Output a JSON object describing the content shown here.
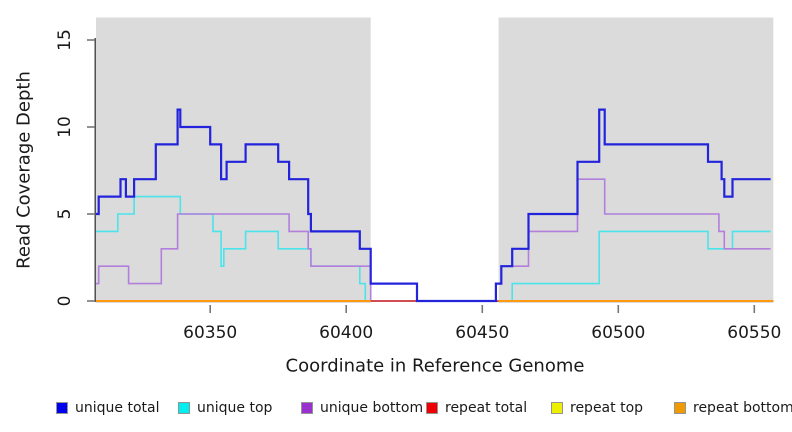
{
  "figure": {
    "xlabel": "Coordinate in Reference Genome",
    "ylabel": "Read Coverage Depth"
  },
  "chart_data": {
    "type": "line",
    "style": "step-coverage-plot",
    "title": "",
    "xlabel": "Coordinate in Reference Genome",
    "ylabel": "Read Coverage Depth",
    "grid": "off",
    "x_axis": {
      "min": 60308,
      "max": 60557,
      "ticks": [
        60350,
        60400,
        60450,
        60500,
        60550
      ]
    },
    "y_axis": {
      "min": 0,
      "max": 16,
      "ticks": [
        0,
        5,
        10,
        15
      ]
    },
    "background_regions": {
      "shaded_color": "#DBDBDB",
      "shaded": [
        [
          60308,
          60409
        ],
        [
          60456,
          60557
        ]
      ],
      "white_gap": [
        60409,
        60456
      ]
    },
    "series": [
      {
        "name": "repeat-top",
        "label": "repeat top",
        "color": "#EEEE00",
        "width": 1.6,
        "segments": [
          [
            [
              60308,
              0
            ],
            [
              60557,
              0
            ]
          ]
        ]
      },
      {
        "name": "unique-top",
        "label": "unique top",
        "color": "#4AE4EA",
        "width": 1.6,
        "segments": [
          [
            [
              60308,
              4
            ],
            [
              60316,
              5
            ],
            [
              60322,
              6
            ],
            [
              60339,
              5
            ],
            [
              60351,
              4
            ],
            [
              60354,
              2
            ],
            [
              60355,
              3
            ],
            [
              60363,
              4
            ],
            [
              60375,
              3
            ],
            [
              60387,
              2
            ],
            [
              60405,
              1
            ],
            [
              60407,
              0
            ],
            [
              60461,
              1
            ],
            [
              60493,
              4
            ],
            [
              60533,
              3
            ],
            [
              60542,
              4
            ],
            [
              60556,
              4
            ]
          ]
        ]
      },
      {
        "name": "unique-bottom",
        "label": "unique bottom",
        "color": "#B27FDC",
        "width": 1.6,
        "segments": [
          [
            [
              60308,
              1
            ],
            [
              60309,
              2
            ],
            [
              60320,
              1
            ],
            [
              60332,
              3
            ],
            [
              60338,
              5
            ],
            [
              60379,
              4
            ],
            [
              60386,
              3
            ],
            [
              60387,
              2
            ],
            [
              60409,
              0
            ],
            [
              60455,
              1
            ],
            [
              60457,
              2
            ],
            [
              60467,
              4
            ],
            [
              60485,
              7
            ],
            [
              60495,
              5
            ],
            [
              60537,
              4
            ],
            [
              60539,
              3
            ],
            [
              60556,
              3
            ]
          ]
        ]
      },
      {
        "name": "repeat-total",
        "label": "repeat total",
        "color": "#DC2A2A",
        "width": 1.6,
        "segments": [
          [
            [
              60308,
              0
            ],
            [
              60557,
              0
            ]
          ]
        ]
      },
      {
        "name": "repeat-bottom",
        "label": "repeat bottom",
        "color": "#FF9912",
        "width": 2,
        "segments": [
          [
            [
              60308,
              0
            ],
            [
              60409,
              0
            ]
          ],
          [
            [
              60456,
              0
            ],
            [
              60557,
              0
            ]
          ]
        ]
      },
      {
        "name": "unique-total",
        "label": "unique total",
        "color": "#2323DC",
        "width": 2.2,
        "segments": [
          [
            [
              60308,
              5
            ],
            [
              60309,
              6
            ],
            [
              60317,
              7
            ],
            [
              60319,
              6
            ],
            [
              60322,
              7
            ],
            [
              60330,
              9
            ],
            [
              60338,
              11
            ],
            [
              60339,
              10
            ],
            [
              60350,
              9
            ],
            [
              60354,
              7
            ],
            [
              60356,
              8
            ],
            [
              60363,
              9
            ],
            [
              60375,
              8
            ],
            [
              60379,
              7
            ],
            [
              60386,
              5
            ],
            [
              60387,
              4
            ],
            [
              60405,
              3
            ],
            [
              60409,
              1
            ],
            [
              60426,
              0
            ],
            [
              60455,
              1
            ],
            [
              60457,
              2
            ],
            [
              60461,
              3
            ],
            [
              60467,
              5
            ],
            [
              60485,
              8
            ],
            [
              60493,
              11
            ],
            [
              60495,
              9
            ],
            [
              60533,
              8
            ],
            [
              60538,
              7
            ],
            [
              60539,
              6
            ],
            [
              60542,
              7
            ],
            [
              60556,
              7
            ]
          ]
        ]
      }
    ],
    "legend": [
      {
        "label": "unique total",
        "swatch": "#0000EE"
      },
      {
        "label": "unique top",
        "swatch": "#00EEEE"
      },
      {
        "label": "unique bottom",
        "swatch": "#9932CC"
      },
      {
        "label": "repeat total",
        "swatch": "#EE0000"
      },
      {
        "label": "repeat top",
        "swatch": "#EEEE00"
      },
      {
        "label": "repeat bottom",
        "swatch": "#EE9A00"
      }
    ],
    "axis_colors": {
      "axis_line": "#333333",
      "tick": "#777777",
      "tick_label": "#1a1a1a"
    }
  }
}
